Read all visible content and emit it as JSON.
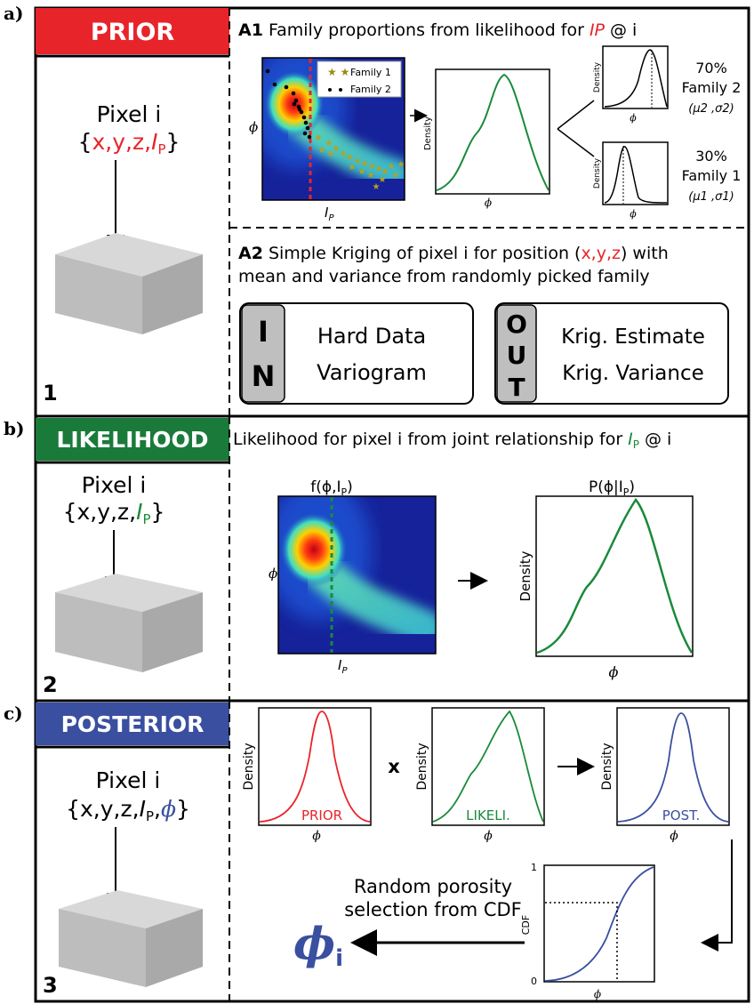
{
  "panels": {
    "a": {
      "letter": "a)",
      "header": "PRIOR",
      "header_color": "#e8242b",
      "pixel_title": "Pixel i",
      "coords_open": "{",
      "coords_red": "x,y,z,",
      "coords_ip": "I",
      "coords_sub": "P",
      "coords_close": "}",
      "step": "1",
      "a1_tag": "A1",
      "a1_text": "Family proportions from likelihood for",
      "a1_ip": "IP",
      "a1_tail": "@ i",
      "legend_family1": "Family 1",
      "legend_family2": "Family 2",
      "phi": "ϕ",
      "ip_label": "I",
      "ip_sub": "P",
      "density": "Density",
      "top_percent": "70%",
      "top_family": "Family 2",
      "top_params": "(μ2 ,σ2)",
      "bottom_percent": "30%",
      "bottom_family": "Family 1",
      "bottom_params": "(μ1 ,σ1)",
      "a2_tag": "A2",
      "a2_line1_pre": "Simple Kriging of pixel i for position (",
      "a2_line1_red": "x,y,z",
      "a2_line1_post": ") with",
      "a2_line2": "mean and variance from randomly picked family",
      "in_letters": [
        "I",
        "N"
      ],
      "in_items": [
        "Hard Data",
        "Variogram"
      ],
      "out_letters": [
        "O",
        "U",
        "T"
      ],
      "out_items": [
        "Krig. Estimate",
        "Krig. Variance"
      ]
    },
    "b": {
      "letter": "b)",
      "header": "LIKELIHOOD",
      "header_color": "#1a7a3a",
      "title_pre": "Likelihood for pixel i from joint relationship for",
      "title_ip": "I",
      "title_sub": "P",
      "title_tail": "@ i",
      "pixel_title": "Pixel i",
      "coords_black": "{x,y,z,",
      "coords_ip": "I",
      "coords_sub": "P",
      "coords_close": "}",
      "step": "2",
      "joint_title": "f(ϕ,I",
      "joint_sub": "P",
      "joint_close": ")",
      "cond_title": "P(ϕ|I",
      "cond_sub": "P",
      "cond_close": ")",
      "phi": "ϕ",
      "ip_label": "I",
      "ip_sub": "P",
      "density": "Density"
    },
    "c": {
      "letter": "c)",
      "header": "POSTERIOR",
      "header_color": "#3a4fa0",
      "pixel_title": "Pixel i",
      "coords_black": "{x,y,z,",
      "coords_ip": "I",
      "coords_sub": "P",
      "coords_comma": ",",
      "coords_phi": "ϕ",
      "coords_close": "}",
      "step": "3",
      "density": "Density",
      "phi": "ϕ",
      "prior_label": "PRIOR",
      "likeli_label": "LIKELI.",
      "post_label": "POST.",
      "times": "x",
      "random_line1": "Random porosity",
      "random_line2": "selection from CDF",
      "phi_big": "ϕ",
      "phi_sub": "i",
      "cdf_label": "CDF",
      "cdf_top": "1",
      "cdf_bottom": "0"
    }
  },
  "colors": {
    "red": "#e8242b",
    "green": "#1a8a3a",
    "blue": "#3a4fa0"
  }
}
